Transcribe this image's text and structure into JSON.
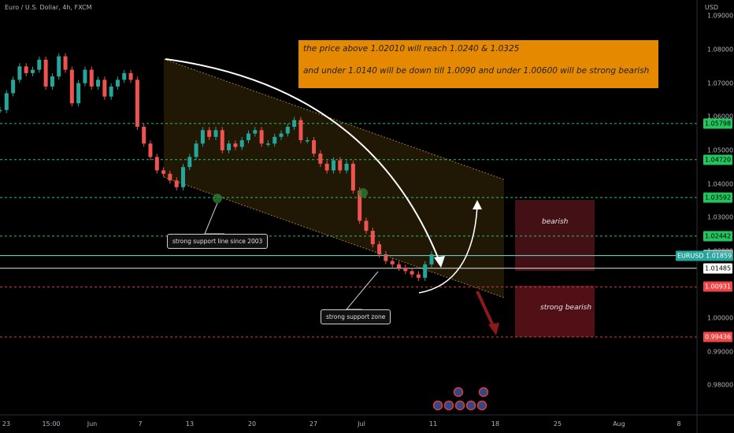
{
  "header": {
    "symbol_line": "Euro / U.S. Dollar, 4h, FXCM",
    "currency": "USD"
  },
  "chart_data": {
    "type": "candlestick",
    "title": "Euro / U.S. Dollar, 4h, FXCM",
    "ylabel": "USD",
    "ylim": [
      0.97558,
      1.09279
    ],
    "x_ticks": [
      "23",
      "15:00",
      "Jun",
      "7",
      "13",
      "20",
      "27",
      "Jul",
      "11",
      "18",
      "25",
      "Aug",
      "8"
    ],
    "y_ticks": [
      "1.09000",
      "1.08000",
      "1.07000",
      "1.06000",
      "1.05000",
      "1.04000",
      "1.03000",
      "1.02000",
      "1.00000",
      "0.99000",
      "0.98000"
    ],
    "price_series": [
      1.062,
      1.067,
      1.071,
      1.075,
      1.073,
      1.074,
      1.077,
      1.069,
      1.072,
      1.078,
      1.074,
      1.064,
      1.07,
      1.074,
      1.069,
      1.071,
      1.066,
      1.069,
      1.071,
      1.073,
      1.071,
      1.057,
      1.052,
      1.048,
      1.044,
      1.043,
      1.041,
      1.039,
      1.045,
      1.048,
      1.052,
      1.056,
      1.054,
      1.056,
      1.05,
      1.052,
      1.051,
      1.053,
      1.055,
      1.056,
      1.052,
      1.052,
      1.054,
      1.055,
      1.057,
      1.059,
      1.053,
      1.053,
      1.049,
      1.046,
      1.044,
      1.047,
      1.044,
      1.046,
      1.038,
      1.029,
      1.026,
      1.022,
      1.019,
      1.017,
      1.016,
      1.015,
      1.014,
      1.013,
      1.012,
      1.016,
      1.019
    ],
    "levels": [
      {
        "value": 1.05798,
        "label": "1.05798",
        "style": "green-dashed"
      },
      {
        "value": 1.0472,
        "label": "1.04720",
        "style": "green-dashed"
      },
      {
        "value": 1.03592,
        "label": "1.03592",
        "style": "green-dashed"
      },
      {
        "value": 1.02442,
        "label": "1.02442",
        "style": "green-dashed"
      },
      {
        "value": 1.01866,
        "label": "1.01866",
        "style": "white-solid"
      },
      {
        "value": 1.01485,
        "label": "1.01485",
        "style": "white-solid"
      },
      {
        "value": 1.00931,
        "label": "1.00931",
        "style": "red-dashed"
      },
      {
        "value": 0.99436,
        "label": "0.99436",
        "style": "red-dashed"
      }
    ],
    "current_price": {
      "symbol": "EURUSD",
      "value": 1.01859
    },
    "colors": {
      "up": "#26a69a",
      "down": "#ef5350",
      "support": "#22c55e",
      "resistance": "#ef4444",
      "note_bg": "#e58a00",
      "current": "#26a69a"
    }
  },
  "annotations": {
    "note_line1": "the price above 1.02010 will reach 1.0240 & 1.0325",
    "note_line2": "and under 1.0140 will be down till 1.0090 and under 1.00600 will be strong bearish",
    "support_line": "strong support line since 2003",
    "support_zone": "strong support zone",
    "bearish": "bearish",
    "strong_bearish": "strong bearish"
  }
}
